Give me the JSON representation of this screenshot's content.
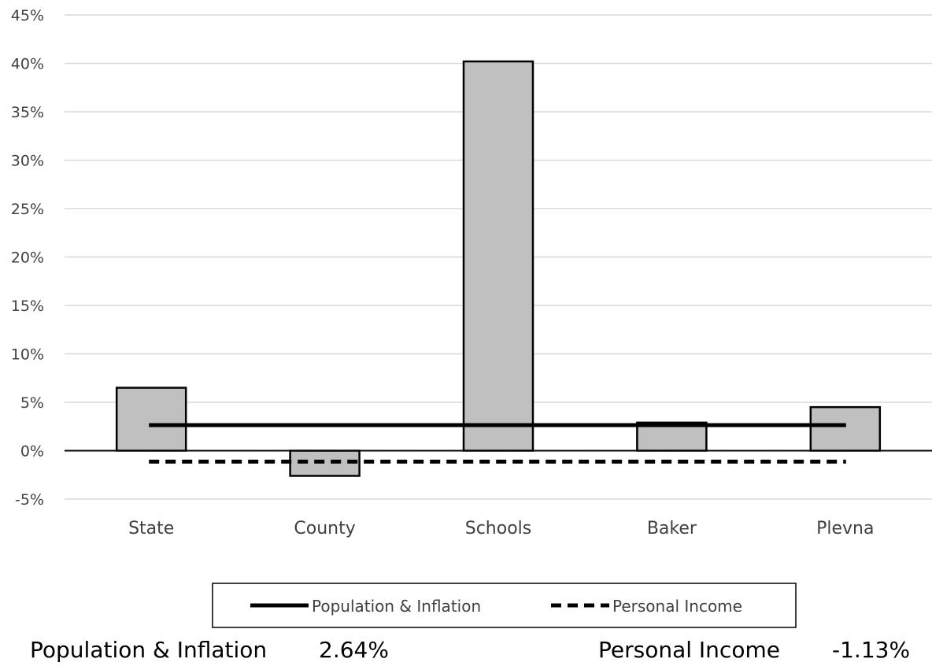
{
  "chart_data": {
    "type": "bar",
    "categories": [
      "State",
      "County",
      "Schools",
      "Baker",
      "Plevna"
    ],
    "series": [
      {
        "values": [
          6.5,
          -2.6,
          40.2,
          2.9,
          4.5
        ]
      }
    ],
    "reference_lines": [
      {
        "name": "Population & Inflation",
        "value": 2.64,
        "style": "solid"
      },
      {
        "name": "Personal Income",
        "value": -1.13,
        "style": "dashed"
      }
    ],
    "ylim": [
      -5,
      45
    ],
    "yticks": [
      -5,
      0,
      5,
      10,
      15,
      20,
      25,
      30,
      35,
      40,
      45
    ],
    "ytick_labels": [
      "-5%",
      "0%",
      "5%",
      "10%",
      "15%",
      "20%",
      "25%",
      "30%",
      "35%",
      "40%",
      "45%"
    ],
    "grid": true,
    "legend_position": "bottom",
    "colors": {
      "bar_fill": "#c0c0c0",
      "bar_stroke": "#000000",
      "gridline": "#d9d9d9",
      "line": "#000000"
    }
  },
  "legend": {
    "items": [
      {
        "label": "Population & Inflation",
        "style": "solid"
      },
      {
        "label": "Personal Income",
        "style": "dashed"
      }
    ]
  },
  "footer": {
    "pop_label": "Population & Inflation",
    "pop_value": "2.64%",
    "income_label": "Personal Income",
    "income_value": "-1.13%"
  }
}
